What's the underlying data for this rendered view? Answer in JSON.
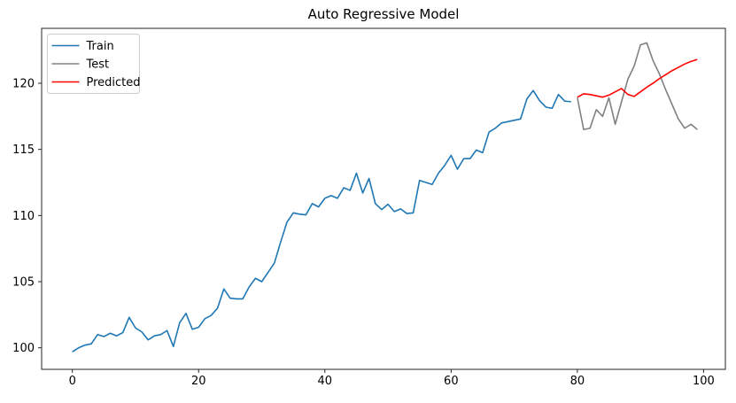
{
  "figure": {
    "background": "#ffffff"
  },
  "chart_data": {
    "type": "line",
    "title": "Auto Regressive Model",
    "xlabel": "",
    "ylabel": "",
    "xlim": [
      -4.87,
      103.45
    ],
    "ylim": [
      98.37,
      124.15
    ],
    "x_ticks": [
      0,
      20,
      40,
      60,
      80,
      100
    ],
    "y_ticks": [
      100,
      105,
      110,
      115,
      120
    ],
    "grid": false,
    "legend": {
      "position": "upper-left",
      "entries": [
        "Train",
        "Test",
        "Predicted"
      ]
    },
    "axis_color": "#262626",
    "series": [
      {
        "name": "Train",
        "color": "#1f77b4",
        "x_start": 0,
        "values": [
          99.7,
          100.0,
          100.2,
          100.3,
          101.0,
          100.85,
          101.1,
          100.9,
          101.15,
          102.3,
          101.5,
          101.2,
          100.6,
          100.9,
          101.0,
          101.3,
          100.1,
          101.9,
          102.6,
          101.4,
          101.55,
          102.2,
          102.45,
          103.0,
          104.45,
          103.75,
          103.7,
          103.7,
          104.6,
          105.25,
          105.0,
          105.7,
          106.4,
          108.0,
          109.5,
          110.2,
          110.1,
          110.05,
          110.9,
          110.65,
          111.3,
          111.5,
          111.3,
          112.1,
          111.9,
          113.2,
          111.7,
          112.8,
          110.9,
          110.45,
          110.85,
          110.3,
          110.5,
          110.15,
          110.2,
          112.65,
          112.5,
          112.35,
          113.2,
          113.8,
          114.55,
          113.5,
          114.3,
          114.3,
          114.95,
          114.75,
          116.3,
          116.6,
          117.0,
          117.1,
          117.2,
          117.3,
          118.8,
          119.45,
          118.7,
          118.2,
          118.1,
          119.15,
          118.65,
          118.6
        ]
      },
      {
        "name": "Test",
        "color": "#808080",
        "x_start": 80,
        "values": [
          118.9,
          116.5,
          116.6,
          118.0,
          117.5,
          118.9,
          116.9,
          118.6,
          120.3,
          121.3,
          122.9,
          123.05,
          121.7,
          120.7,
          119.5,
          118.4,
          117.3,
          116.6,
          116.9,
          116.5
        ]
      },
      {
        "name": "Predicted",
        "color": "#ff0000",
        "x_start": 80,
        "values": [
          118.95,
          119.2,
          119.15,
          119.05,
          118.95,
          119.1,
          119.35,
          119.6,
          119.15,
          119.0,
          119.35,
          119.7,
          120.0,
          120.35,
          120.65,
          120.95,
          121.2,
          121.45,
          121.65,
          121.8
        ]
      }
    ]
  }
}
